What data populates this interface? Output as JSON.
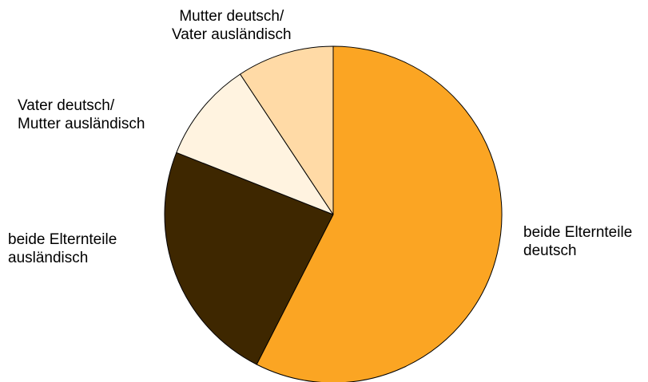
{
  "chart_data": {
    "type": "pie",
    "title": "",
    "slices": [
      {
        "label_lines": [
          "beide Elternteile",
          "deutsch"
        ],
        "value": 57.5,
        "color": "#FBA523"
      },
      {
        "label_lines": [
          "beide Elternteile",
          "ausländisch"
        ],
        "value": 23.5,
        "color": "#3E2700"
      },
      {
        "label_lines": [
          "Vater deutsch/",
          "Mutter ausländisch"
        ],
        "value": 9.7,
        "color": "#FFF3E0"
      },
      {
        "label_lines": [
          "Mutter deutsch/",
          "Vater ausländisch"
        ],
        "value": 9.3,
        "color": "#FFDAA6"
      }
    ]
  }
}
